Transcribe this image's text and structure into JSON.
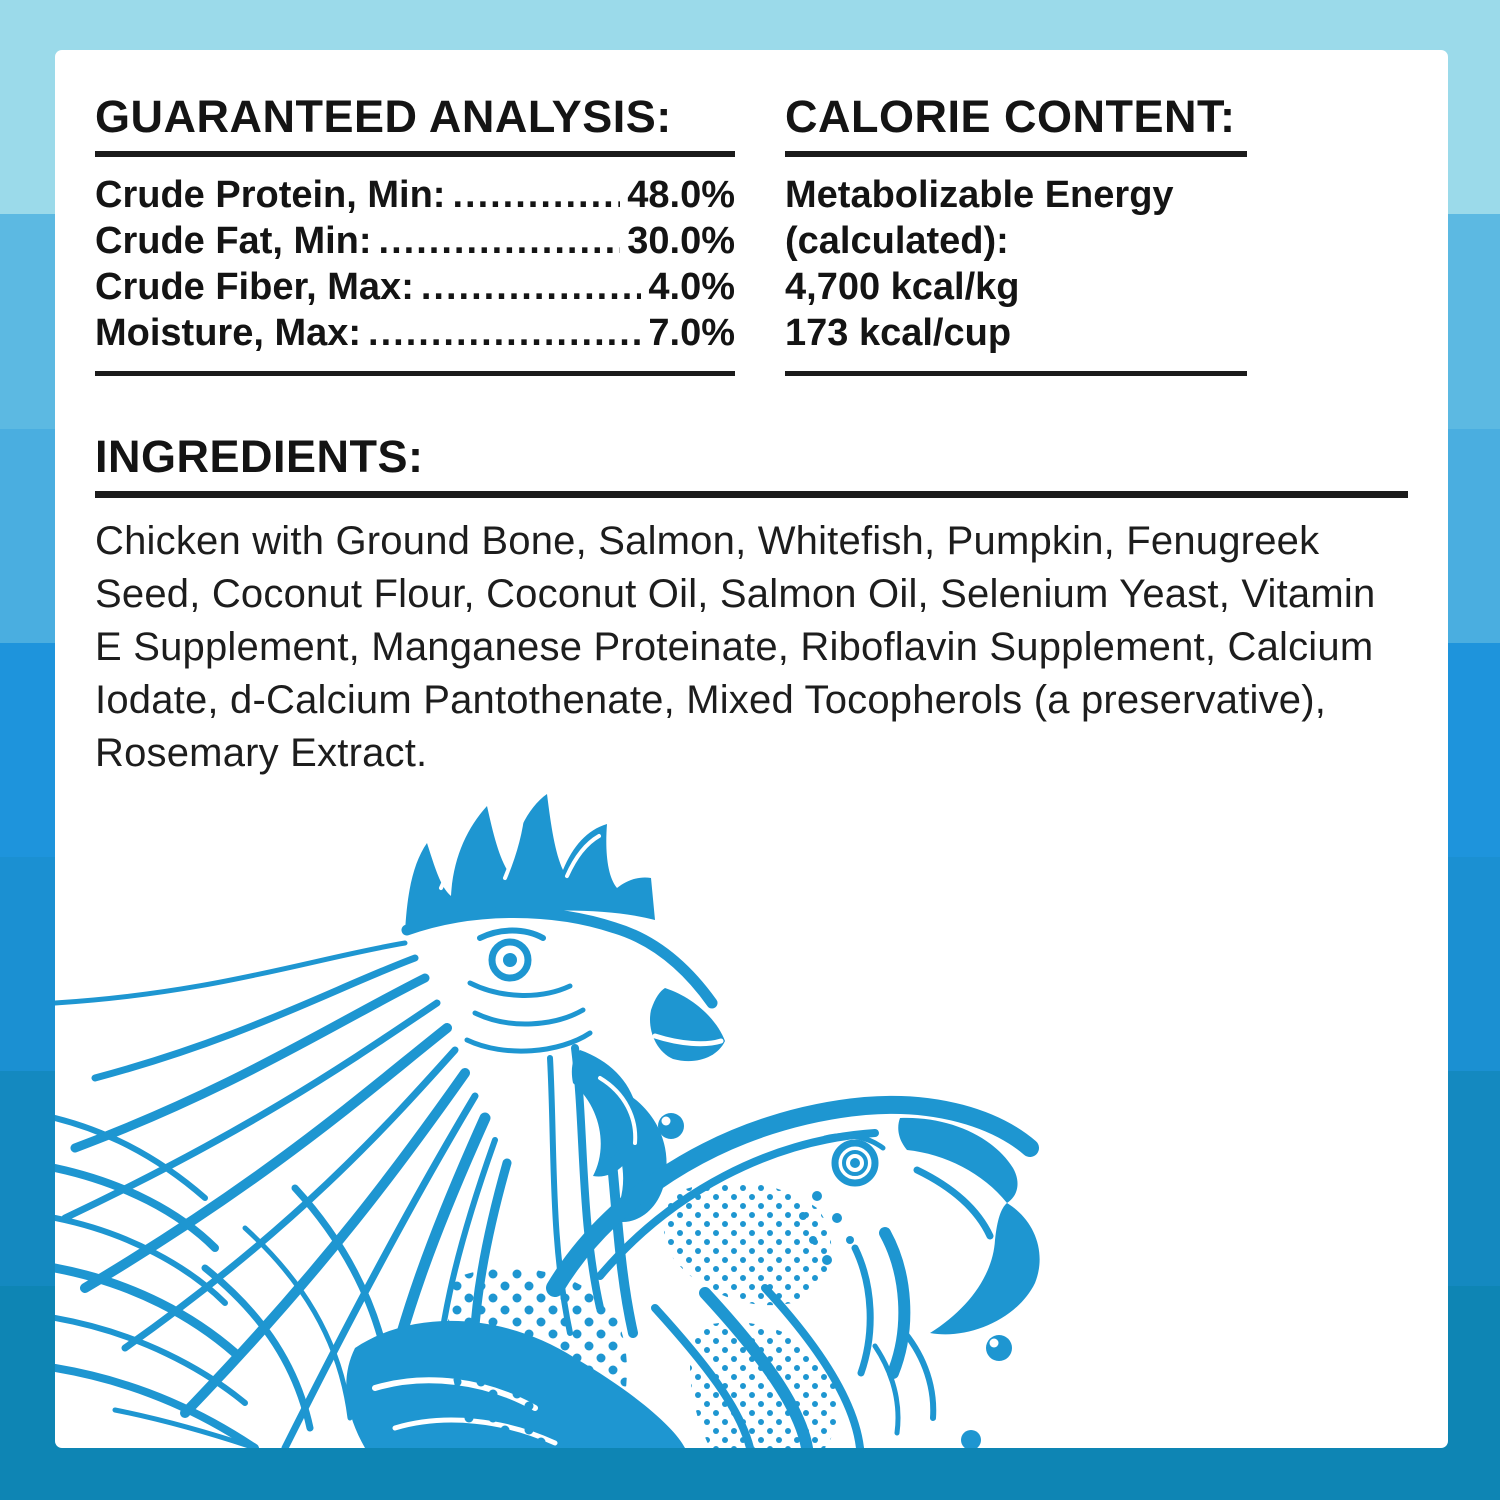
{
  "panel": {
    "guaranteed_analysis": {
      "heading": "GUARANTEED ANALYSIS:",
      "leader": "................................................................................",
      "rows": [
        {
          "label": "Crude Protein, Min:",
          "value": "48.0%"
        },
        {
          "label": "Crude Fat, Min:",
          "value": "30.0%"
        },
        {
          "label": "Crude Fiber, Max:",
          "value": "4.0%"
        },
        {
          "label": "Moisture, Max:",
          "value": "7.0%"
        }
      ]
    },
    "calorie_content": {
      "heading": "CALORIE CONTENT:",
      "lines": [
        "Metabolizable Energy",
        "(calculated):",
        "4,700 kcal/kg",
        "173 kcal/cup"
      ]
    },
    "ingredients": {
      "heading": "INGREDIENTS:",
      "text": "Chicken with Ground Bone, Salmon, Whitefish, Pumpkin, Fenugreek Seed, Coconut Flour, Coconut Oil, Salmon Oil, Selenium Yeast, Vitamin E Supplement, Manganese Proteinate, Riboflavin Supplement, Calcium Iodate, d-Calcium Pantothenate, Mixed Tocopherols (a preservative), Rosemary Extract."
    }
  },
  "illustration": {
    "name": "rooster-and-salmon-line-art",
    "ink_color": "#1e96d1"
  },
  "background": {
    "bands": [
      "#9bdaea",
      "#5cb9e2",
      "#4aaee0",
      "#1e94dc",
      "#1b90d2",
      "#1489c0",
      "#0e85b4"
    ]
  },
  "card_color": "#ffffff",
  "text_color": "#141414"
}
